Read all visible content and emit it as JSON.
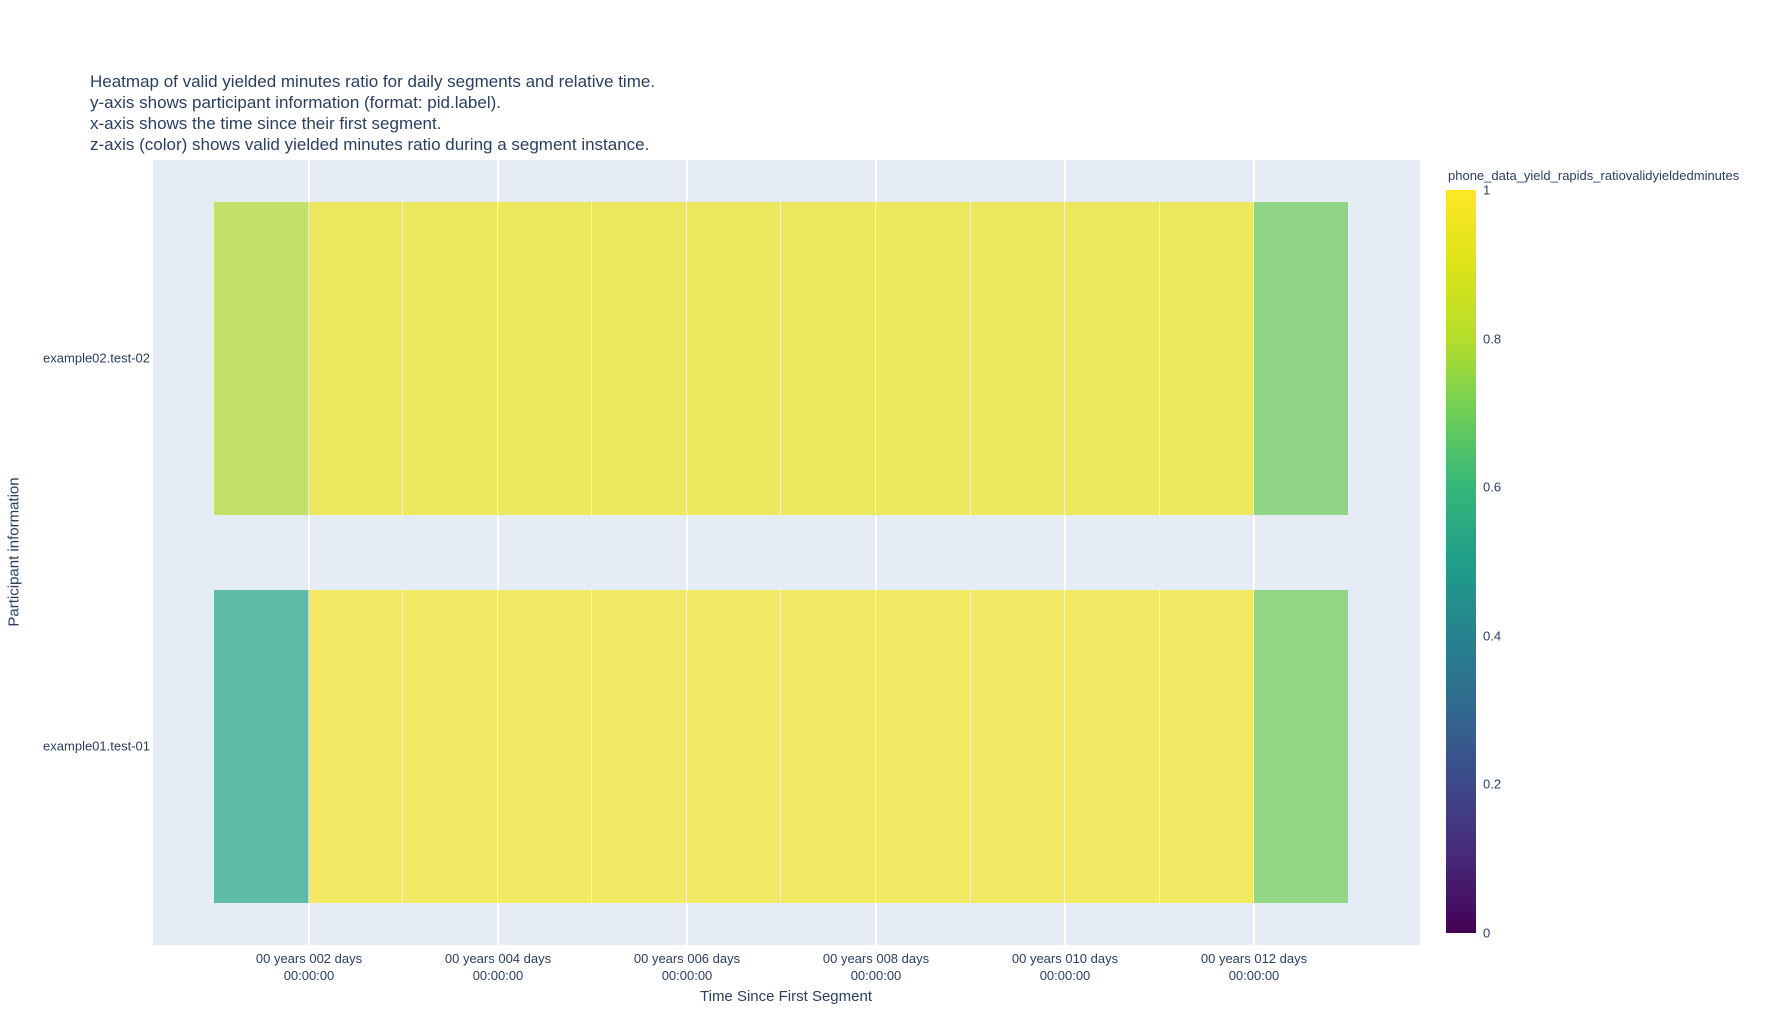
{
  "title_lines": [
    "Heatmap of valid yielded minutes ratio for daily segments and relative time.",
    "y-axis shows participant information (format: pid.label).",
    "x-axis shows the time since their first segment.",
    "z-axis (color) shows valid yielded minutes ratio during a segment instance."
  ],
  "colors": {
    "figure_bg": "#ffffff",
    "plot_bg": "#e5ecf6",
    "text": "#2a3f5f",
    "grid": "#ffffff"
  },
  "chart_data": {
    "type": "heatmap",
    "xlabel": "Time Since First Segment",
    "ylabel": "Participant information",
    "x_days": [
      1,
      2,
      3,
      4,
      5,
      6,
      7,
      8,
      9,
      10,
      11,
      12
    ],
    "x_tick_labels": [
      "00 years 002 days\n00:00:00",
      "00 years 004 days\n00:00:00",
      "00 years 006 days\n00:00:00",
      "00 years 008 days\n00:00:00",
      "00 years 010 days\n00:00:00",
      "00 years 012 days\n00:00:00"
    ],
    "y_categories": [
      "example01.test-01",
      "example02.test-02"
    ],
    "zlim": [
      0,
      1
    ],
    "rows": [
      {
        "label": "example02.test-02",
        "z": [
          0.84,
          0.95,
          0.95,
          0.95,
          0.95,
          0.95,
          0.95,
          0.95,
          0.95,
          0.95,
          0.95,
          0.74
        ],
        "cell_colors": [
          "#c5e069",
          "#ece85e",
          "#ece85e",
          "#ece85e",
          "#ece85e",
          "#ece85e",
          "#ece85e",
          "#ece85e",
          "#ece85e",
          "#ece85e",
          "#ece85e",
          "#90d585"
        ]
      },
      {
        "label": "example01.test-01",
        "z": [
          0.58,
          0.97,
          0.97,
          0.97,
          0.97,
          0.97,
          0.97,
          0.97,
          0.97,
          0.97,
          0.97,
          0.74
        ],
        "cell_colors": [
          "#5fbaa7",
          "#f3e965",
          "#f3e965",
          "#f3e965",
          "#f3e965",
          "#f3e965",
          "#f3e965",
          "#f3e965",
          "#f3e965",
          "#f3e965",
          "#f3e965",
          "#92d783"
        ]
      }
    ],
    "colorbar": {
      "title": "phone_data_yield_rapids_ratiovalidyieldedminutes",
      "tick_labels": [
        "1",
        "0.8",
        "0.6",
        "0.4",
        "0.2",
        "0"
      ],
      "colorscale": [
        [
          0.0,
          "#440154"
        ],
        [
          0.1,
          "#482878"
        ],
        [
          0.2,
          "#3e4989"
        ],
        [
          0.3,
          "#31688e"
        ],
        [
          0.4,
          "#26828e"
        ],
        [
          0.5,
          "#1f9e89"
        ],
        [
          0.6,
          "#35b779"
        ],
        [
          0.7,
          "#6ece58"
        ],
        [
          0.8,
          "#b5de2b"
        ],
        [
          0.9,
          "#dde318"
        ],
        [
          1.0,
          "#fde725"
        ]
      ]
    }
  }
}
